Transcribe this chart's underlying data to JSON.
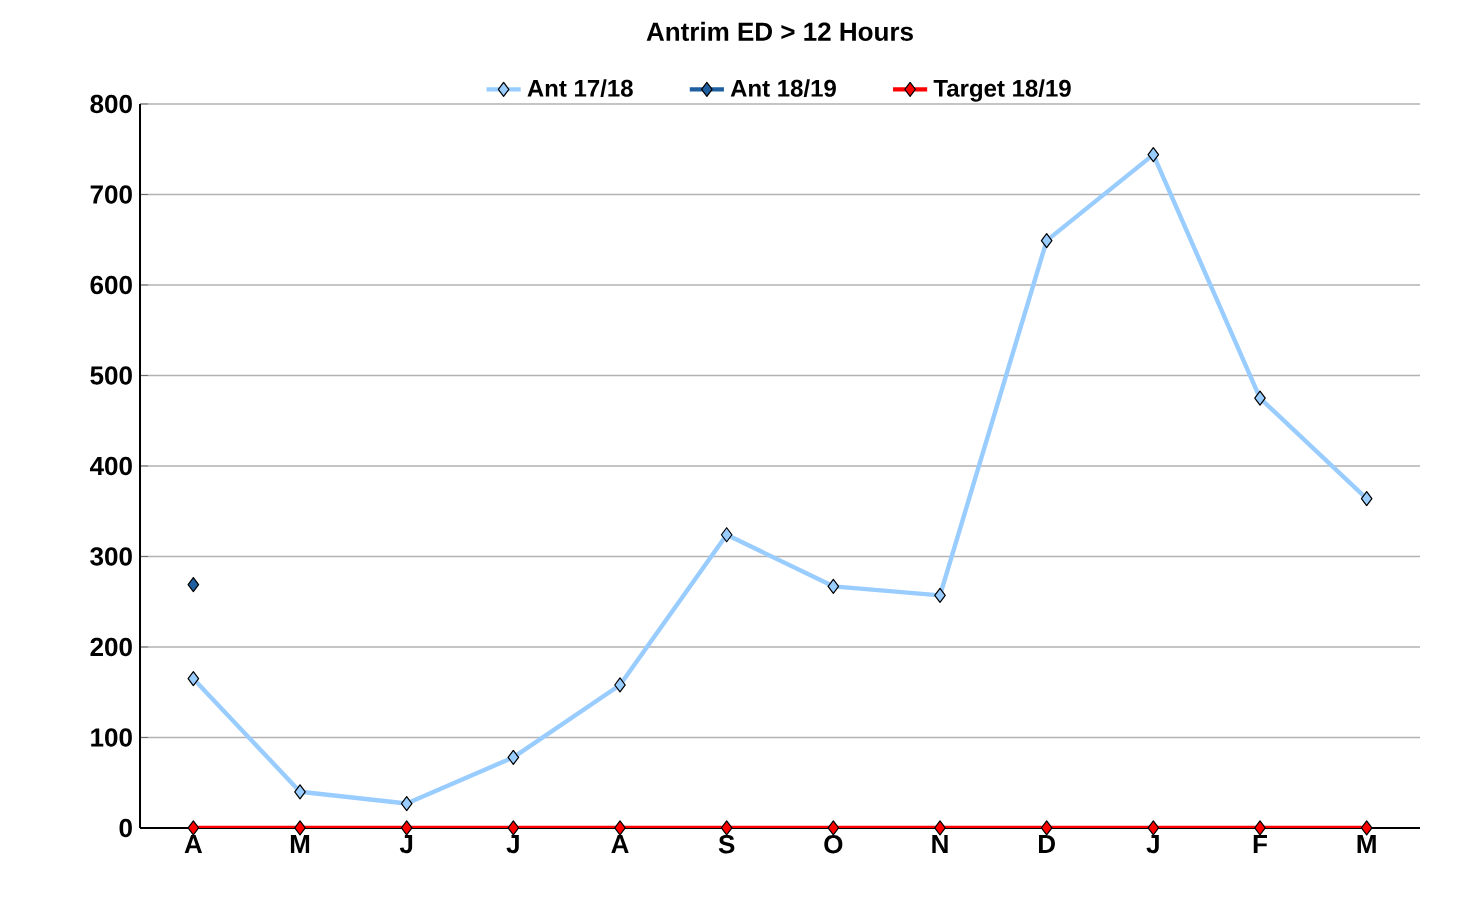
{
  "chart_data": {
    "type": "line",
    "title": "Antrim ED > 12 Hours",
    "categories": [
      "A",
      "M",
      "J",
      "J",
      "A",
      "S",
      "O",
      "N",
      "D",
      "J",
      "F",
      "M"
    ],
    "series": [
      {
        "name": "Ant 17/18",
        "color": "#99ccff",
        "values": [
          165,
          40,
          27,
          78,
          158,
          324,
          267,
          257,
          649,
          744,
          475,
          364
        ]
      },
      {
        "name": "Ant 18/19",
        "color": "#1f5f9f",
        "values": [
          269,
          null,
          null,
          null,
          null,
          null,
          null,
          null,
          null,
          null,
          null,
          null
        ]
      },
      {
        "name": "Target 18/19",
        "color": "#ff0000",
        "values": [
          0,
          0,
          0,
          0,
          0,
          0,
          0,
          0,
          0,
          0,
          0,
          0
        ]
      }
    ],
    "ylim": [
      0,
      800
    ],
    "yticks": [
      0,
      100,
      200,
      300,
      400,
      500,
      600,
      700,
      800
    ],
    "grid": "y",
    "legend": "top",
    "marker": "diamond",
    "line_style": "solid"
  }
}
